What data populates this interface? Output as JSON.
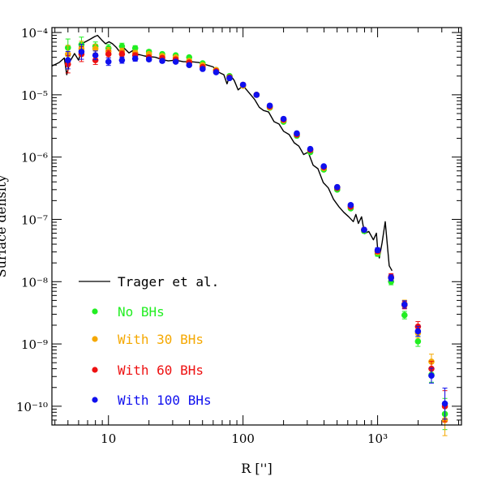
{
  "chart_data": {
    "type": "scatter",
    "xlabel": "R ['']",
    "ylabel": "Surface density",
    "xscale": "log",
    "yscale": "log",
    "xlim": [
      3.8,
      4200
    ],
    "ylim": [
      5e-11,
      0.00012
    ],
    "x_ticks": [
      {
        "value": 10,
        "label": "10"
      },
      {
        "value": 100,
        "label": "100"
      },
      {
        "value": 1000,
        "label": "10³"
      }
    ],
    "y_ticks": [
      {
        "value": 0.0001,
        "label": "10⁻⁴"
      },
      {
        "value": 1e-05,
        "label": "10⁻⁵"
      },
      {
        "value": 1e-06,
        "label": "10⁻⁶"
      },
      {
        "value": 1e-07,
        "label": "10⁻⁷"
      },
      {
        "value": 1e-08,
        "label": "10⁻⁸"
      },
      {
        "value": 1e-09,
        "label": "10⁻⁹"
      },
      {
        "value": 1e-10,
        "label": "10⁻¹⁰"
      }
    ],
    "legend_position": "bottom-left",
    "observed": {
      "name": "Trager et al.",
      "color": "#000000",
      "x": [
        3.8,
        4.3,
        4.7,
        4.9,
        5.2,
        5.6,
        6.0,
        6.5,
        6.9,
        7.4,
        7.9,
        8.3,
        8.9,
        9.5,
        10.1,
        10.7,
        11.4,
        12.2,
        13.1,
        14.2,
        15.1,
        16.0,
        17.1,
        18.5,
        20.2,
        22.3,
        24.8,
        27.8,
        31.5,
        36.0,
        41.0,
        47.0,
        54.0,
        60.0,
        66.0,
        72.0,
        76.0,
        80.0,
        86.0,
        92.0,
        100.0,
        110.0,
        122.0,
        132.0,
        142.0,
        155.0,
        170.0,
        185.0,
        200.0,
        220.0,
        240.0,
        260.0,
        282.0,
        305.0,
        332.0,
        360.0,
        395.0,
        430.0,
        470.0,
        515.0,
        560.0,
        610.0,
        660.0,
        690.0,
        720.0,
        760.0,
        800.0,
        860.0,
        930.0,
        980.0,
        1000.0,
        1030.0,
        1080.0,
        1140.0,
        1220.0,
        1280.0
      ],
      "y": [
        2.9e-05,
        3.3e-05,
        3.9e-05,
        2.1e-05,
        3.5e-05,
        4.6e-05,
        3.6e-05,
        6.8e-05,
        7.3e-05,
        7.9e-05,
        8.6e-05,
        9e-05,
        7.6e-05,
        6.6e-05,
        7.1e-05,
        6.6e-05,
        5.8e-05,
        4.8e-05,
        5.6e-05,
        4.7e-05,
        5.1e-05,
        4.5e-05,
        4.4e-05,
        4.2e-05,
        4.1e-05,
        4e-05,
        3.7e-05,
        3.5e-05,
        3.6e-05,
        3.4e-05,
        3.4e-05,
        3.3e-05,
        3e-05,
        2.8e-05,
        2.3e-05,
        2.1e-05,
        1.5e-05,
        2.1e-05,
        1.7e-05,
        1.2e-05,
        1.4e-05,
        1.1e-05,
        8.4e-06,
        6.3e-06,
        5.6e-06,
        5.3e-06,
        3.7e-06,
        3.4e-06,
        2.6e-06,
        2.3e-06,
        1.7e-06,
        1.5e-06,
        1.1e-06,
        1.2e-06,
        7.4e-07,
        6.5e-07,
        3.9e-07,
        3.2e-07,
        2.1e-07,
        1.6e-07,
        1.3e-07,
        1.1e-07,
        9.2e-08,
        1.2e-07,
        8.6e-08,
        1.1e-07,
        5.9e-08,
        6.4e-08,
        4.7e-08,
        6e-08,
        3.4e-08,
        2.4e-08,
        4.2e-08,
        9.2e-08,
        1.8e-08,
        1.5e-08
      ]
    },
    "series": [
      {
        "name": "No BHs",
        "color": "#22ee22",
        "x": [
          5.0,
          6.3,
          8.0,
          10.0,
          12.6,
          15.8,
          20.0,
          25.1,
          31.6,
          39.8,
          50.1,
          63.1,
          79.4,
          100,
          126,
          158,
          200,
          251,
          316,
          398,
          501,
          631,
          794,
          1000,
          1259,
          1585,
          1995,
          2512,
          3162
        ],
        "y": [
          5.7e-05,
          6.4e-05,
          6e-05,
          5.6e-05,
          6e-05,
          5.6e-05,
          4.9e-05,
          4.5e-05,
          4.3e-05,
          4e-05,
          3.2e-05,
          2.5e-05,
          2e-05,
          1.4e-05,
          1e-05,
          6.2e-06,
          3.7e-06,
          2.2e-06,
          1.2e-06,
          6.3e-07,
          3e-07,
          1.5e-07,
          6.5e-08,
          2.8e-08,
          1e-08,
          2.9e-09,
          1.1e-09,
          3.2e-10,
          7.5e-11
        ],
        "err": [
          0.14,
          0.12,
          0.07,
          0.06,
          0.05,
          0.04,
          0.03,
          0.03,
          0.02,
          0.02,
          0.02,
          0.02,
          0.02,
          0.02,
          0.02,
          0.02,
          0.02,
          0.02,
          0.02,
          0.02,
          0.02,
          0.02,
          0.03,
          0.04,
          0.05,
          0.06,
          0.08,
          0.12,
          0.25
        ]
      },
      {
        "name": "With 30 BHs",
        "color": "#f5a800",
        "x": [
          5.0,
          6.3,
          8.0,
          10.0,
          12.6,
          15.8,
          20.0,
          25.1,
          31.6,
          39.8,
          50.1,
          63.1,
          79.4,
          100,
          126,
          158,
          200,
          251,
          316,
          398,
          501,
          631,
          794,
          1000,
          1259,
          1585,
          1995,
          2512,
          3162
        ],
        "y": [
          4.5e-05,
          5.5e-05,
          5.5e-05,
          5e-05,
          5e-05,
          4.7e-05,
          4.5e-05,
          4.2e-05,
          4e-05,
          3.5e-05,
          3e-05,
          2.5e-05,
          1.9e-05,
          1.4e-05,
          1e-05,
          6.3e-06,
          3.9e-06,
          2.3e-06,
          1.3e-06,
          6.7e-07,
          3.3e-07,
          1.6e-07,
          6.8e-08,
          3e-08,
          1.15e-08,
          4.4e-09,
          1.5e-09,
          5.2e-10,
          6e-11
        ],
        "err": [
          0.14,
          0.12,
          0.07,
          0.06,
          0.05,
          0.04,
          0.03,
          0.03,
          0.02,
          0.02,
          0.02,
          0.02,
          0.02,
          0.02,
          0.02,
          0.02,
          0.02,
          0.02,
          0.02,
          0.02,
          0.02,
          0.02,
          0.03,
          0.04,
          0.05,
          0.06,
          0.08,
          0.12,
          0.25
        ]
      },
      {
        "name": "With 60 BHs",
        "color": "#ee1111",
        "x": [
          5.0,
          6.3,
          8.0,
          10.0,
          12.6,
          15.8,
          20.0,
          25.1,
          31.6,
          39.8,
          50.1,
          63.1,
          79.4,
          100,
          126,
          158,
          200,
          251,
          316,
          398,
          501,
          631,
          794,
          1000,
          1259,
          1585,
          1995,
          2512,
          3162
        ],
        "y": [
          3.1e-05,
          4.5e-05,
          3.6e-05,
          4.5e-05,
          4.5e-05,
          4.3e-05,
          4e-05,
          3.9e-05,
          3.7e-05,
          3.3e-05,
          2.8e-05,
          2.4e-05,
          1.9e-05,
          1.45e-05,
          1e-05,
          6.5e-06,
          4e-06,
          2.3e-06,
          1.3e-06,
          6.9e-07,
          3.2e-07,
          1.6e-07,
          6.8e-08,
          3.1e-08,
          1.2e-08,
          4.2e-09,
          1.9e-09,
          4e-10,
          1e-10
        ],
        "err": [
          0.14,
          0.12,
          0.07,
          0.06,
          0.05,
          0.04,
          0.03,
          0.03,
          0.02,
          0.02,
          0.02,
          0.02,
          0.02,
          0.02,
          0.02,
          0.02,
          0.02,
          0.02,
          0.02,
          0.02,
          0.02,
          0.02,
          0.03,
          0.04,
          0.05,
          0.06,
          0.08,
          0.12,
          0.25
        ]
      },
      {
        "name": "With 100 BHs",
        "color": "#1010ee",
        "x": [
          5.0,
          6.3,
          8.0,
          10.0,
          12.6,
          15.8,
          20.0,
          25.1,
          31.6,
          39.8,
          50.1,
          63.1,
          79.4,
          100,
          126,
          158,
          200,
          251,
          316,
          398,
          501,
          631,
          794,
          1000,
          1259,
          1585,
          1995,
          2512,
          3162
        ],
        "y": [
          3.6e-05,
          4.9e-05,
          4.3e-05,
          3.4e-05,
          3.6e-05,
          3.8e-05,
          3.7e-05,
          3.5e-05,
          3.4e-05,
          3e-05,
          2.6e-05,
          2.3e-05,
          1.85e-05,
          1.45e-05,
          1e-05,
          6.7e-06,
          4.1e-06,
          2.4e-06,
          1.35e-06,
          7.1e-07,
          3.3e-07,
          1.7e-07,
          6.8e-08,
          3.2e-08,
          1.15e-08,
          4.3e-09,
          1.6e-09,
          3.1e-10,
          1.1e-10
        ],
        "err": [
          0.14,
          0.12,
          0.07,
          0.06,
          0.05,
          0.04,
          0.03,
          0.03,
          0.02,
          0.02,
          0.02,
          0.02,
          0.02,
          0.02,
          0.02,
          0.02,
          0.02,
          0.02,
          0.02,
          0.02,
          0.02,
          0.02,
          0.03,
          0.04,
          0.05,
          0.06,
          0.08,
          0.12,
          0.25
        ]
      }
    ]
  }
}
